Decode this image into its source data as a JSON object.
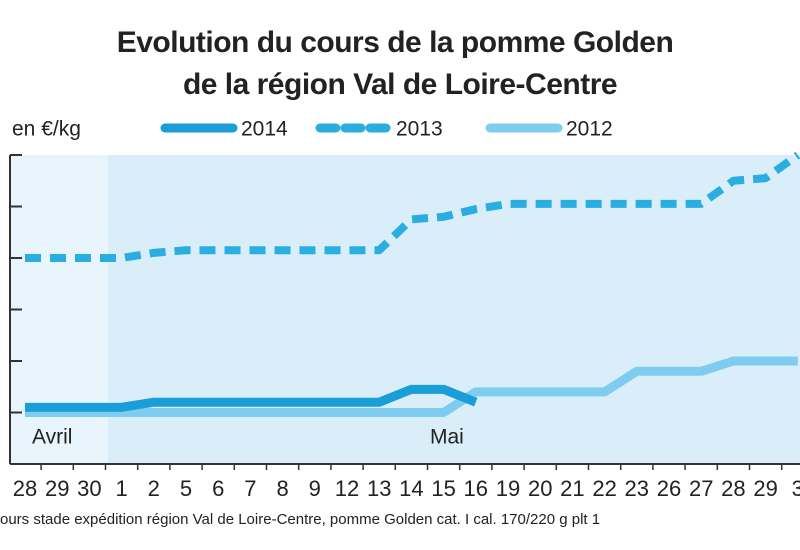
{
  "chart_data": {
    "type": "line",
    "title": [
      "Evolution du cours de la pomme Golden",
      "de la région Val de Loire-Centre"
    ],
    "y_label": "en €/kg",
    "annotations": [
      "Avril",
      "Mai"
    ],
    "source": "ours stade expédition région Val de Loire-Centre, pomme Golden cat. I cal. 170/220 g plt 1",
    "categories": [
      "28",
      "29",
      "30",
      "1",
      "2",
      "5",
      "6",
      "7",
      "8",
      "9",
      "12",
      "13",
      "14",
      "15",
      "16",
      "19",
      "20",
      "21",
      "22",
      "23",
      "26",
      "27",
      "28",
      "29",
      "3"
    ],
    "series": [
      {
        "name": "2014",
        "color": "#1a9ed8",
        "style": "solid",
        "values": [
          1.1,
          1.1,
          1.1,
          1.1,
          1.2,
          1.2,
          1.2,
          1.2,
          1.2,
          1.2,
          1.2,
          1.2,
          1.45,
          1.45,
          1.2,
          null,
          null,
          null,
          null,
          null,
          null,
          null,
          null,
          null,
          null
        ]
      },
      {
        "name": "2013",
        "color": "#2aaee2",
        "style": "dashed",
        "values": [
          4.0,
          4.0,
          4.0,
          4.0,
          4.1,
          4.15,
          4.15,
          4.15,
          4.15,
          4.15,
          4.15,
          4.15,
          4.75,
          4.8,
          4.95,
          5.05,
          5.05,
          5.05,
          5.05,
          5.05,
          5.05,
          5.05,
          5.5,
          5.55,
          6.0
        ]
      },
      {
        "name": "2012",
        "color": "#7ecdf0",
        "style": "solid",
        "values": [
          1.0,
          1.0,
          1.0,
          1.0,
          1.0,
          1.0,
          1.0,
          1.0,
          1.0,
          1.0,
          1.0,
          1.0,
          1.0,
          1.0,
          1.4,
          1.4,
          1.4,
          1.4,
          1.4,
          1.8,
          1.8,
          1.8,
          2.0,
          2.0,
          2.0
        ]
      }
    ],
    "ylim": [
      0,
      6
    ],
    "yticks": [
      0,
      1,
      2,
      3,
      4,
      5,
      6
    ]
  }
}
